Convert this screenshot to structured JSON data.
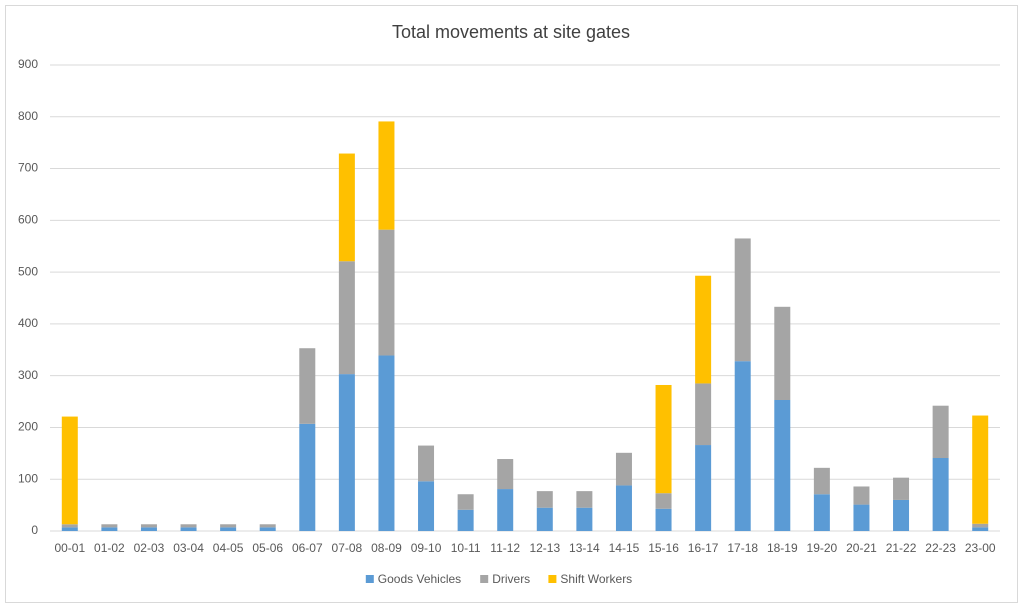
{
  "chart_data": {
    "type": "stacked_bar",
    "title": "Total movements at site gates",
    "categories": [
      "00-01",
      "01-02",
      "02-03",
      "03-04",
      "04-05",
      "05-06",
      "06-07",
      "07-08",
      "08-09",
      "09-10",
      "10-11",
      "11-12",
      "12-13",
      "13-14",
      "14-15",
      "15-16",
      "16-17",
      "17-18",
      "18-19",
      "19-20",
      "20-21",
      "21-22",
      "22-23",
      "23-00"
    ],
    "series": [
      {
        "name": "Goods Vehicles",
        "color": "#5b9bd5",
        "values": [
          7,
          7,
          7,
          7,
          7,
          7,
          207,
          303,
          339,
          96,
          41,
          81,
          45,
          45,
          88,
          43,
          166,
          328,
          253,
          71,
          51,
          60,
          141,
          7
        ]
      },
      {
        "name": "Drivers",
        "color": "#a5a5a5",
        "values": [
          6,
          6,
          6,
          6,
          6,
          6,
          146,
          218,
          243,
          69,
          30,
          58,
          32,
          32,
          63,
          30,
          119,
          237,
          180,
          51,
          35,
          43,
          101,
          7
        ]
      },
      {
        "name": "Shift Workers",
        "color": "#ffc000",
        "values": [
          208,
          0,
          0,
          0,
          0,
          0,
          0,
          208,
          209,
          0,
          0,
          0,
          0,
          0,
          0,
          209,
          208,
          0,
          0,
          0,
          0,
          0,
          0,
          209
        ]
      }
    ],
    "ylim": [
      0,
      900
    ],
    "yticks": [
      0,
      100,
      200,
      300,
      400,
      500,
      600,
      700,
      800,
      900
    ],
    "grid": true,
    "legend": "bottom"
  }
}
